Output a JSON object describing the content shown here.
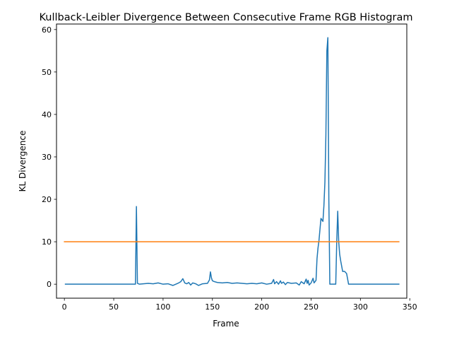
{
  "chart_data": {
    "type": "line",
    "title": "Kullback-Leibler Divergence Between Consecutive Frame RGB Histogram",
    "xlabel": "Frame",
    "ylabel": "KL Divergence",
    "xlim": [
      -8,
      347
    ],
    "ylim": [
      -3.3,
      61.3
    ],
    "xticks": [
      0,
      50,
      100,
      150,
      200,
      250,
      300,
      350
    ],
    "yticks": [
      0,
      10,
      20,
      30,
      40,
      50,
      60
    ],
    "grid": false,
    "legend": "none",
    "series": [
      {
        "color": "#1f77b4",
        "x": [
          1,
          20,
          40,
          60,
          70,
          72,
          73,
          74,
          76,
          80,
          85,
          90,
          95,
          100,
          105,
          110,
          115,
          118,
          120,
          122,
          124,
          126,
          128,
          130,
          133,
          136,
          140,
          145,
          147,
          148,
          149,
          150,
          152,
          155,
          160,
          165,
          170,
          175,
          180,
          185,
          190,
          195,
          200,
          205,
          210,
          212,
          213,
          215,
          217,
          219,
          220,
          222,
          224,
          226,
          230,
          235,
          238,
          240,
          243,
          245,
          246,
          247,
          248,
          250,
          252,
          253,
          255,
          256,
          257,
          258,
          260,
          262,
          263,
          264,
          265,
          266,
          267,
          268,
          269,
          270,
          272,
          275,
          276,
          277,
          278,
          279,
          280,
          282,
          284,
          286,
          288,
          290,
          300,
          320,
          339
        ],
        "values": [
          0,
          0,
          0,
          0,
          0,
          0,
          18.3,
          0.2,
          0,
          0.1,
          0.2,
          0.1,
          0.3,
          0,
          0.1,
          -0.3,
          0.2,
          0.6,
          1.3,
          0.3,
          0.1,
          0.4,
          -0.2,
          0.3,
          0.1,
          -0.3,
          0.1,
          0.2,
          1.0,
          2.9,
          1.5,
          0.8,
          0.6,
          0.4,
          0.3,
          0.4,
          0.2,
          0.3,
          0.2,
          0.1,
          0.2,
          0.1,
          0.3,
          0,
          0.2,
          1.1,
          0.1,
          0.6,
          0,
          0.8,
          0.2,
          0.5,
          -0.1,
          0.4,
          0.2,
          0.3,
          -0.2,
          0.6,
          0.1,
          1.2,
          0.2,
          0.9,
          -0.2,
          0.3,
          1.4,
          0.3,
          0.9,
          6.0,
          8.5,
          10.3,
          15.5,
          14.8,
          18.5,
          24.0,
          35.0,
          55.0,
          58.1,
          20.0,
          0,
          0,
          0,
          0,
          10.0,
          17.2,
          10.0,
          7.0,
          5.5,
          3.0,
          3.0,
          2.5,
          0,
          0,
          0,
          0,
          0
        ]
      },
      {
        "color": "#ff7f0e",
        "x": [
          0,
          339
        ],
        "values": [
          10,
          10
        ]
      }
    ]
  }
}
